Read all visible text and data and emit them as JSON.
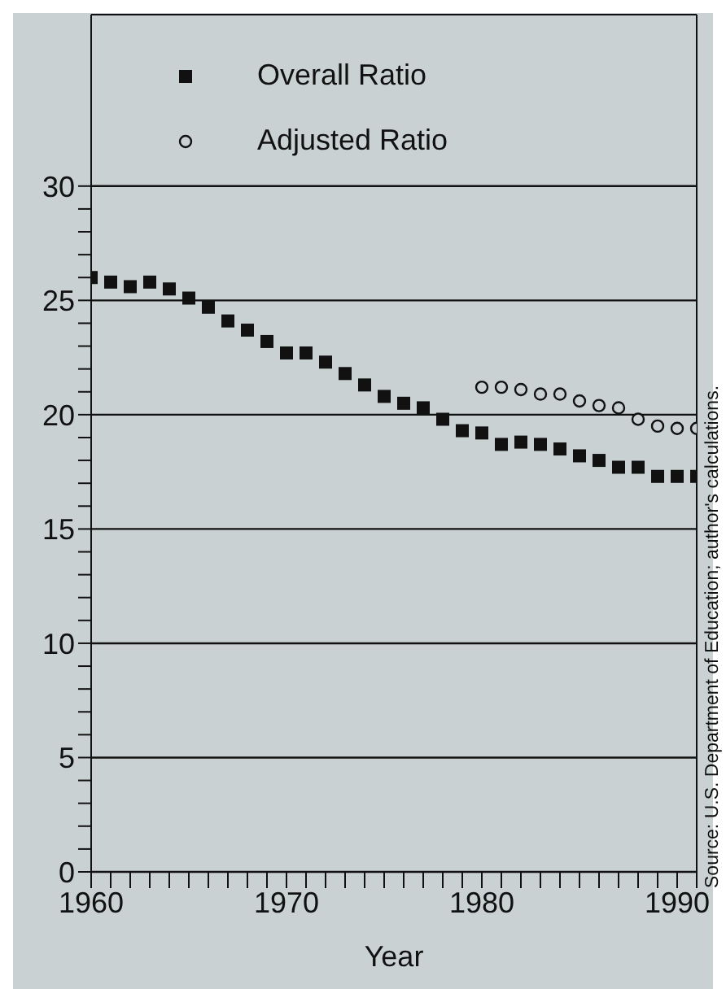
{
  "chart_data": {
    "type": "scatter",
    "xlabel": "Year",
    "x": [
      1960,
      1961,
      1962,
      1963,
      1964,
      1965,
      1966,
      1967,
      1968,
      1969,
      1970,
      1971,
      1972,
      1973,
      1974,
      1975,
      1976,
      1977,
      1978,
      1979,
      1980,
      1981,
      1982,
      1983,
      1984,
      1985,
      1986,
      1987,
      1988,
      1989,
      1990,
      1991
    ],
    "series": [
      {
        "name": "Overall Ratio",
        "color": "#111111",
        "marker": "square",
        "values": [
          26.0,
          25.8,
          25.6,
          25.8,
          25.5,
          25.1,
          24.7,
          24.1,
          23.7,
          23.2,
          22.7,
          22.7,
          22.3,
          21.8,
          21.3,
          20.8,
          20.5,
          20.3,
          19.8,
          19.3,
          19.2,
          18.7,
          18.8,
          18.7,
          18.5,
          18.2,
          18.0,
          17.7,
          17.7,
          17.3,
          17.3,
          17.3
        ]
      },
      {
        "name": "Adjusted Ratio",
        "color": "#111111",
        "marker": "circle",
        "values": [
          null,
          null,
          null,
          null,
          null,
          null,
          null,
          null,
          null,
          null,
          null,
          null,
          null,
          null,
          null,
          null,
          null,
          null,
          null,
          null,
          21.2,
          21.2,
          21.1,
          20.9,
          20.9,
          20.6,
          20.4,
          20.3,
          19.8,
          19.5,
          19.4,
          19.4
        ]
      }
    ],
    "xlim": [
      1960,
      1991
    ],
    "xticks": [
      1960,
      {
        "value": 1961,
        "label": null
      },
      {
        "value": 1962,
        "label": null
      },
      {
        "value": 1963,
        "label": null
      },
      {
        "value": 1964,
        "label": null
      },
      {
        "value": 1965,
        "label": null
      },
      {
        "value": 1966,
        "label": null
      },
      {
        "value": 1967,
        "label": null
      },
      {
        "value": 1968,
        "label": null
      },
      {
        "value": 1969,
        "label": null
      },
      1970,
      {
        "value": 1971,
        "label": null
      },
      {
        "value": 1972,
        "label": null
      },
      {
        "value": 1973,
        "label": null
      },
      {
        "value": 1974,
        "label": null
      },
      {
        "value": 1975,
        "label": null
      },
      {
        "value": 1976,
        "label": null
      },
      {
        "value": 1977,
        "label": null
      },
      {
        "value": 1978,
        "label": null
      },
      {
        "value": 1979,
        "label": null
      },
      1980,
      {
        "value": 1981,
        "label": null
      },
      {
        "value": 1982,
        "label": null
      },
      {
        "value": 1983,
        "label": null
      },
      {
        "value": 1984,
        "label": null
      },
      {
        "value": 1985,
        "label": null
      },
      {
        "value": 1986,
        "label": null
      },
      {
        "value": 1987,
        "label": null
      },
      {
        "value": 1988,
        "label": null
      },
      {
        "value": 1989,
        "label": null
      },
      1990,
      {
        "value": 1991,
        "label": null
      }
    ],
    "ylim": [
      0,
      37.5
    ],
    "yticks": [
      0,
      {
        "value": 1,
        "label": null
      },
      {
        "value": 2,
        "label": null
      },
      {
        "value": 3,
        "label": null
      },
      {
        "value": 4,
        "label": null
      },
      5,
      {
        "value": 6,
        "label": null
      },
      {
        "value": 7,
        "label": null
      },
      {
        "value": 8,
        "label": null
      },
      {
        "value": 9,
        "label": null
      },
      10,
      {
        "value": 11,
        "label": null
      },
      {
        "value": 12,
        "label": null
      },
      {
        "value": 13,
        "label": null
      },
      {
        "value": 14,
        "label": null
      },
      15,
      {
        "value": 16,
        "label": null
      },
      {
        "value": 17,
        "label": null
      },
      {
        "value": 18,
        "label": null
      },
      {
        "value": 19,
        "label": null
      },
      20,
      {
        "value": 21,
        "label": null
      },
      {
        "value": 22,
        "label": null
      },
      {
        "value": 23,
        "label": null
      },
      {
        "value": 24,
        "label": null
      },
      25,
      {
        "value": 26,
        "label": null
      },
      {
        "value": 27,
        "label": null
      },
      {
        "value": 28,
        "label": null
      },
      {
        "value": 29,
        "label": null
      },
      30
    ],
    "grid": "y",
    "legend": "top",
    "annotations": [
      "Source: U.S. Department of Education; author's calculations."
    ]
  }
}
